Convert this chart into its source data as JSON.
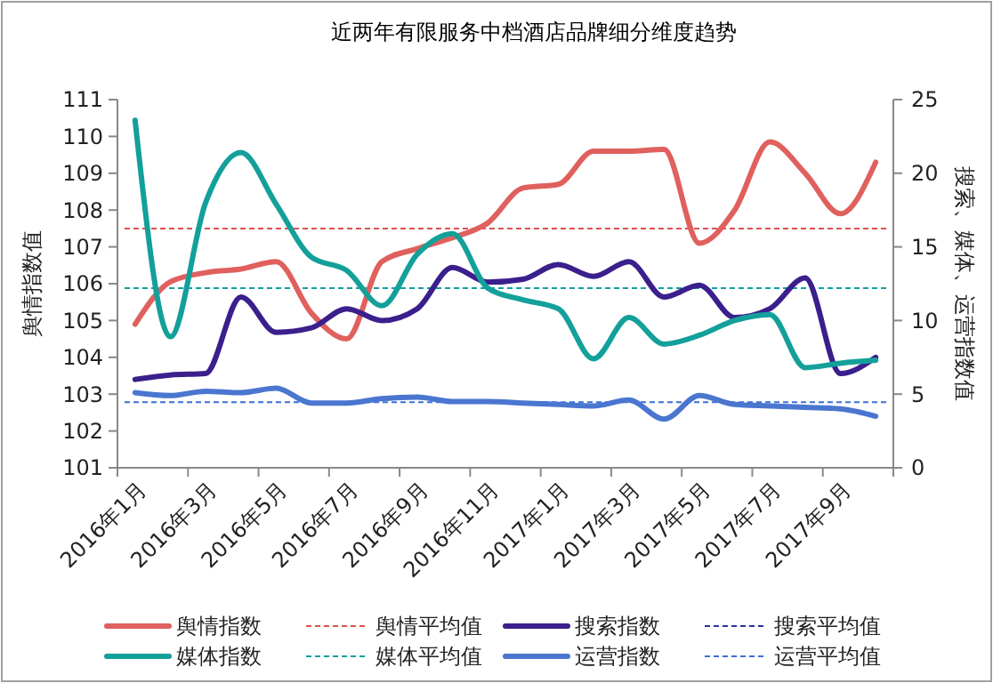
{
  "chart_data": {
    "type": "line",
    "title": "近两年有限服务中档酒店品牌细分维度趋势",
    "ylabel": "舆情指数值",
    "y2label": "搜索、媒体、运营指数值",
    "categories": [
      "2016年1月",
      null,
      "2016年3月",
      null,
      "2016年5月",
      null,
      "2016年7月",
      null,
      "2016年9月",
      null,
      "2016年11月",
      null,
      "2017年1月",
      null,
      "2017年3月",
      null,
      "2017年5月",
      null,
      "2017年7月",
      null,
      "2017年9月",
      null
    ],
    "series": [
      {
        "name": "舆情指数",
        "color": "#e0605e",
        "values": [
          104.9,
          106.05,
          106.3,
          106.4,
          106.6,
          105.2,
          104.5,
          106.6,
          106.95,
          107.25,
          107.65,
          108.6,
          108.7,
          109.6,
          109.6,
          109.65,
          107.1,
          108,
          109.85,
          109,
          107.9,
          109.3
        ]
      },
      {
        "name": "搜索指数",
        "color": "#3b1f8c",
        "axis": "y2",
        "values": [
          6,
          6.3,
          6.4,
          11.6,
          9.2,
          9.5,
          10.8,
          10,
          10.8,
          13.6,
          12.6,
          12.8,
          13.8,
          13,
          14,
          11.6,
          12.4,
          10.2,
          10.8,
          12.9,
          6.4,
          7.5
        ]
      },
      {
        "name": "媒体指数",
        "color": "#14a09a",
        "axis": "y2",
        "values": [
          23.6,
          8.9,
          18,
          21.4,
          17.9,
          14.3,
          13.4,
          11,
          14.5,
          15.9,
          12.2,
          11.4,
          10.8,
          7.4,
          10.2,
          8.4,
          9,
          10,
          10.4,
          6.8,
          7.1,
          7.3
        ]
      },
      {
        "name": "运营指数",
        "color": "#4a76d0",
        "axis": "y2",
        "values": [
          5.1,
          4.9,
          5.2,
          5.1,
          5.4,
          4.4,
          4.4,
          4.7,
          4.8,
          4.5,
          4.5,
          4.4,
          4.3,
          4.2,
          4.6,
          3.3,
          4.9,
          4.3,
          4.2,
          4.1,
          4,
          3.5
        ]
      }
    ],
    "ref_lines": [
      {
        "axis": "y",
        "value": 107.5,
        "label": "舆情平均值",
        "color": "#e05050",
        "line_style": "dashed"
      },
      {
        "value": null,
        "label": "搜索平均值",
        "color": "#3030a0",
        "line_style": "dashed"
      },
      {
        "axis": "y2",
        "value": 12.2,
        "label": "媒体平均值",
        "color": "#10a0a0",
        "line_style": "dashed"
      },
      {
        "axis": "y2",
        "value": 4.45,
        "label": "运营平均值",
        "color": "#3a6fd8",
        "line_style": "dashed"
      }
    ],
    "ylim": [
      101,
      111
    ],
    "yticks": [
      101,
      102,
      103,
      104,
      105,
      106,
      107,
      108,
      109,
      110,
      111
    ],
    "y2lim": [
      0,
      25
    ],
    "y2ticks": [
      0,
      5,
      10,
      15,
      20,
      25
    ],
    "grid": false,
    "legend": "bottom",
    "marker": "none",
    "line_style": "solid"
  }
}
